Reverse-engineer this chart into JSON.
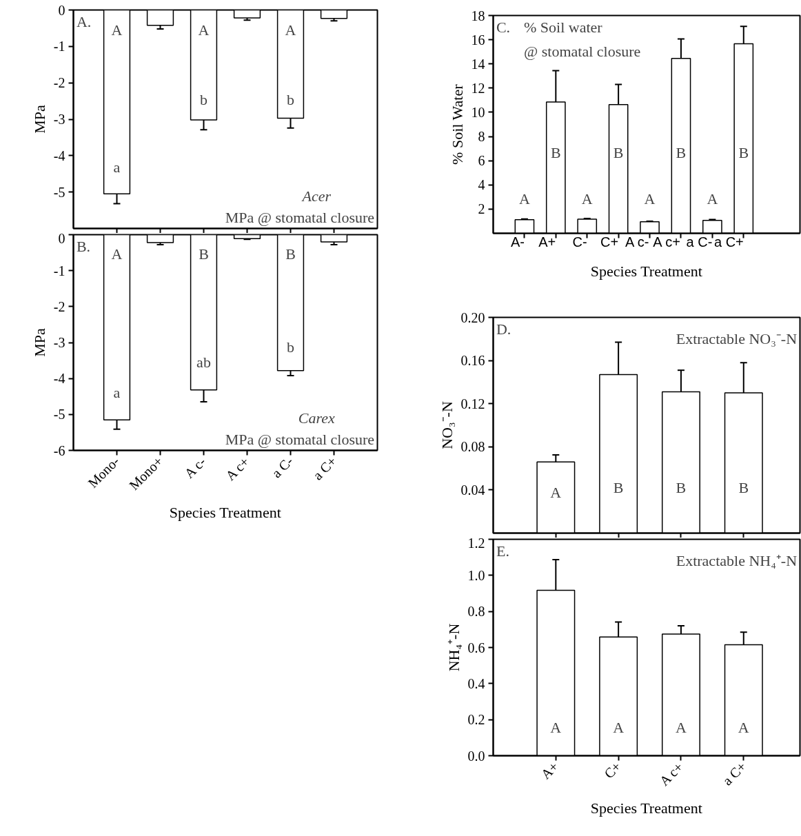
{
  "chart_data": [
    {
      "type": "bar",
      "ylabel": "MPa",
      "categories": [
        null,
        null,
        null,
        null,
        null,
        null
      ],
      "series": [
        {
          "color": "#ffffff",
          "values": [
            -5.05,
            -0.42,
            -3.02,
            -0.22,
            -2.97,
            -0.23
          ],
          "errors": [
            0.27,
            0.1,
            0.27,
            0.06,
            0.27,
            0.07
          ]
        }
      ],
      "ylim": [
        -6,
        0
      ],
      "yticks": [
        -5,
        -4,
        -3,
        -2,
        -1,
        0
      ],
      "grid": false,
      "tick_labels": "y",
      "annotations": [
        "A.",
        "Acer",
        "MPa @ stomatal closure",
        "A",
        "a",
        "A",
        "b",
        "A",
        "b"
      ]
    },
    {
      "type": "bar",
      "ylabel": "MPa",
      "xlabel": "Species Treatment",
      "categories": [
        "Mono-",
        "Mono+",
        "A c-",
        "A c+",
        "a C-",
        "a C+"
      ],
      "series": [
        {
          "color": "#ffffff",
          "values": [
            -5.15,
            -0.22,
            -4.32,
            -0.11,
            -3.78,
            -0.2
          ],
          "errors": [
            0.26,
            0.06,
            0.33,
            0.02,
            0.14,
            0.08
          ]
        }
      ],
      "ylim": [
        -6,
        0
      ],
      "yticks": [
        -6,
        -5,
        -4,
        -3,
        -2,
        -1,
        0
      ],
      "grid": false,
      "annotations": [
        "B.",
        "Carex",
        "MPa @ stomatal closure",
        "A",
        "a",
        "B",
        "ab",
        "B",
        "b"
      ]
    },
    {
      "type": "bar",
      "ylabel": "% Soil Water",
      "xlabel": "Species Treatment",
      "categories": [
        "A-",
        "A+",
        "C-",
        "C+",
        "A c-",
        "A c+",
        "a C-",
        "a C+"
      ],
      "series": [
        {
          "color": "#ffffff",
          "values": [
            1.13,
            10.85,
            1.17,
            10.64,
            0.96,
            14.46,
            1.07,
            15.67
          ],
          "errors": [
            0.05,
            2.6,
            0.05,
            1.67,
            0.04,
            1.6,
            0.07,
            1.43
          ]
        }
      ],
      "ylim": [
        0,
        18
      ],
      "yticks": [
        2,
        4,
        6,
        8,
        10,
        12,
        14,
        16,
        18
      ],
      "grid": false,
      "annotations": [
        "C.",
        "% Soil water",
        "@ stomatal closure",
        "A",
        "B",
        "A",
        "B",
        "A",
        "B",
        "A",
        "B"
      ]
    },
    {
      "type": "bar",
      "ylabel": "NO₃⁻-N",
      "categories": [
        null,
        null,
        null,
        null
      ],
      "series": [
        {
          "color": "#ffffff",
          "values": [
            0.066,
            0.147,
            0.131,
            0.13
          ],
          "errors": [
            0.0065,
            0.03,
            0.02,
            0.028
          ]
        }
      ],
      "ylim": [
        0,
        0.2
      ],
      "yticks": [
        {
          "value": 0.04,
          "label": "0.04"
        },
        {
          "value": 0.08,
          "label": "0.08"
        },
        {
          "value": 0.12,
          "label": "0.12"
        },
        {
          "value": 0.16,
          "label": "0.16"
        },
        {
          "value": 0.2,
          "label": "0.20"
        }
      ],
      "grid": false,
      "tick_labels": "y",
      "annotations": [
        "D.",
        "Extractable NO₃⁻-N",
        "A",
        "B",
        "B",
        "B"
      ]
    },
    {
      "type": "bar",
      "ylabel": "NH₄⁺-N",
      "xlabel": "Species Treatment",
      "categories": [
        "A+",
        "C+",
        "A c+",
        "a C+"
      ],
      "series": [
        {
          "color": "#ffffff",
          "values": [
            0.917,
            0.658,
            0.675,
            0.615
          ],
          "errors": [
            0.17,
            0.083,
            0.045,
            0.07
          ]
        }
      ],
      "ylim": [
        0,
        1.2
      ],
      "yticks": [
        {
          "value": 0,
          "label": "0.0"
        },
        0.2,
        0.4,
        0.6,
        0.8,
        {
          "value": 1,
          "label": "1.0"
        },
        1.2
      ],
      "grid": false,
      "annotations": [
        "E.",
        "Extractable NH₄⁺-N",
        "A",
        "A",
        "A",
        "A"
      ]
    }
  ]
}
